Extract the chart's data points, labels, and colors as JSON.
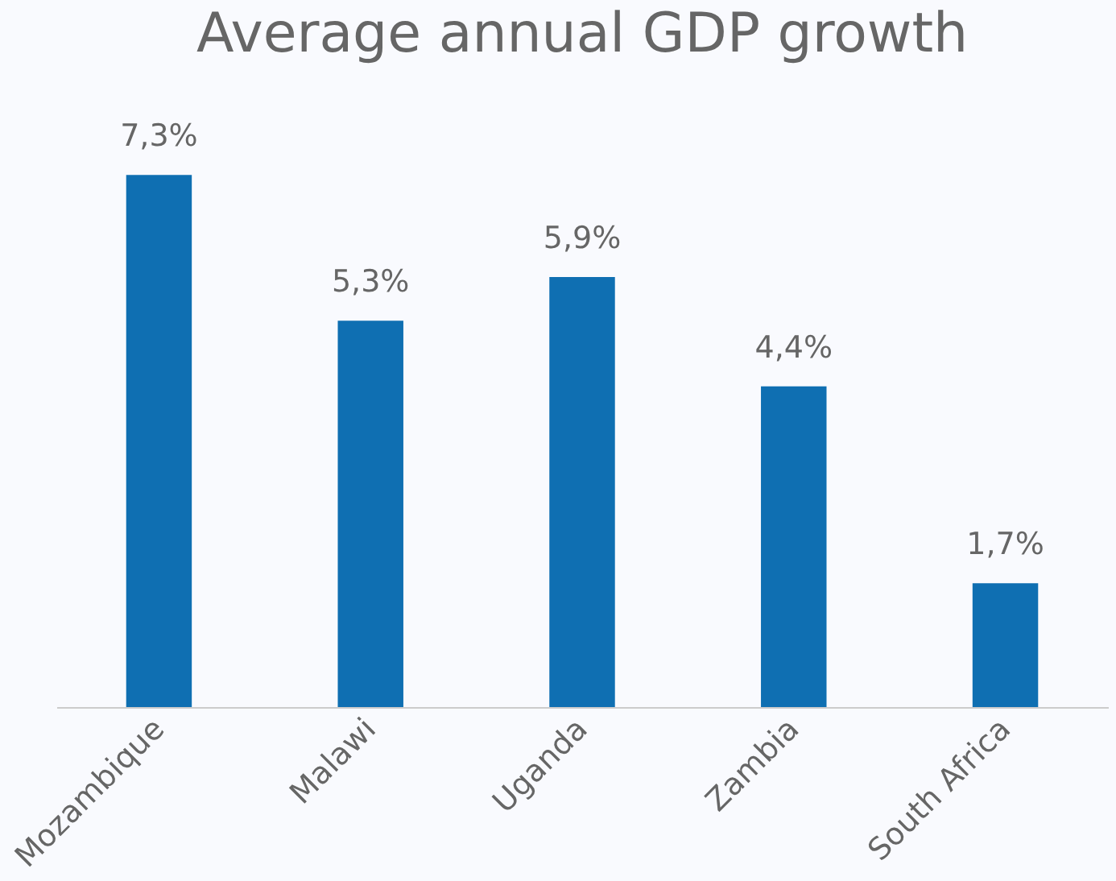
{
  "chart_data": {
    "type": "bar",
    "title": "Average annual GDP growth",
    "categories": [
      "Mozambique",
      "Malawi",
      "Uganda",
      "Zambia",
      "South Africa"
    ],
    "values": [
      7.3,
      5.3,
      5.9,
      4.4,
      1.7
    ],
    "value_labels": [
      "7,3%",
      "5,3%",
      "5,9%",
      "4,4%",
      "1,7%"
    ],
    "color": "#0f6fb2",
    "grid": false,
    "tick_labels": "x"
  }
}
